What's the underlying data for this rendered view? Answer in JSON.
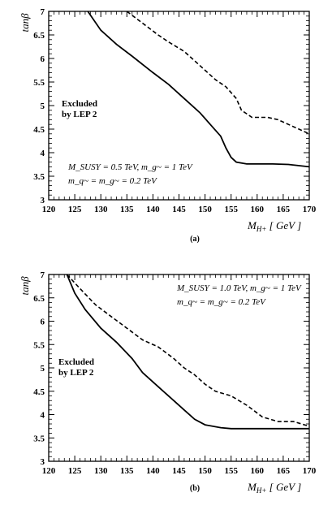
{
  "chart_data": [
    {
      "type": "line",
      "panel_label": "(a)",
      "xlabel": "M_H+  [ GeV ]",
      "ylabel": "tanβ",
      "xlim": [
        120,
        170
      ],
      "ylim": [
        3,
        7
      ],
      "x_ticks": [
        "120",
        "125",
        "130",
        "135",
        "140",
        "145",
        "150",
        "155",
        "160",
        "165",
        "170"
      ],
      "y_ticks": [
        "3",
        "3.5",
        "4",
        "4.5",
        "5",
        "5.5",
        "6",
        "6.5",
        "7"
      ],
      "region_label": [
        "Excluded",
        "by LEP 2"
      ],
      "annotation": [
        "M_SUSY = 0.5 TeV,   m_g~ = 1 TeV",
        "m_q~ = m_g~ = 0.2 TeV"
      ],
      "series": [
        {
          "style": "solid",
          "x": [
            127.5,
            130,
            133,
            136,
            140,
            143,
            146,
            149,
            151,
            153,
            154,
            155,
            156,
            158,
            160,
            163,
            166,
            170
          ],
          "y": [
            7,
            6.6,
            6.3,
            6.05,
            5.7,
            5.45,
            5.15,
            4.85,
            4.6,
            4.35,
            4.1,
            3.9,
            3.8,
            3.76,
            3.76,
            3.76,
            3.75,
            3.7
          ]
        },
        {
          "style": "dashed",
          "x": [
            135,
            138,
            141,
            143,
            146,
            148,
            150,
            152,
            154,
            156,
            157,
            159,
            162,
            164,
            166,
            168,
            170
          ],
          "y": [
            7,
            6.75,
            6.5,
            6.35,
            6.15,
            5.95,
            5.75,
            5.55,
            5.4,
            5.15,
            4.9,
            4.75,
            4.75,
            4.7,
            4.6,
            4.5,
            4.4
          ]
        }
      ]
    },
    {
      "type": "line",
      "panel_label": "(b)",
      "xlabel": "M_H+  [ GeV ]",
      "ylabel": "tanβ",
      "xlim": [
        120,
        170
      ],
      "ylim": [
        3,
        7
      ],
      "x_ticks": [
        "120",
        "125",
        "130",
        "135",
        "140",
        "145",
        "150",
        "155",
        "160",
        "165",
        "170"
      ],
      "y_ticks": [
        "3",
        "3.5",
        "4",
        "4.5",
        "5",
        "5.5",
        "6",
        "6.5",
        "7"
      ],
      "region_label": [
        "Excluded",
        "by LEP 2"
      ],
      "annotation": [
        "M_SUSY = 1.0 TeV,   m_g~ = 1 TeV",
        "m_q~ = m_g~ = 0.2 TeV"
      ],
      "series": [
        {
          "style": "solid",
          "x": [
            123.5,
            125,
            127,
            130,
            133,
            136,
            138,
            140,
            142,
            144,
            146,
            148,
            150,
            153,
            155,
            160,
            165,
            170
          ],
          "y": [
            7,
            6.6,
            6.25,
            5.85,
            5.55,
            5.2,
            4.9,
            4.7,
            4.5,
            4.3,
            4.1,
            3.9,
            3.78,
            3.72,
            3.7,
            3.7,
            3.7,
            3.7
          ]
        },
        {
          "style": "dashed",
          "x": [
            123.5,
            126,
            129,
            132,
            135,
            138,
            141,
            144,
            146,
            148,
            150,
            152,
            155,
            158,
            161,
            164,
            167,
            170
          ],
          "y": [
            7,
            6.7,
            6.35,
            6.1,
            5.85,
            5.6,
            5.45,
            5.2,
            5,
            4.85,
            4.65,
            4.5,
            4.4,
            4.2,
            3.95,
            3.85,
            3.85,
            3.75
          ]
        }
      ]
    }
  ]
}
